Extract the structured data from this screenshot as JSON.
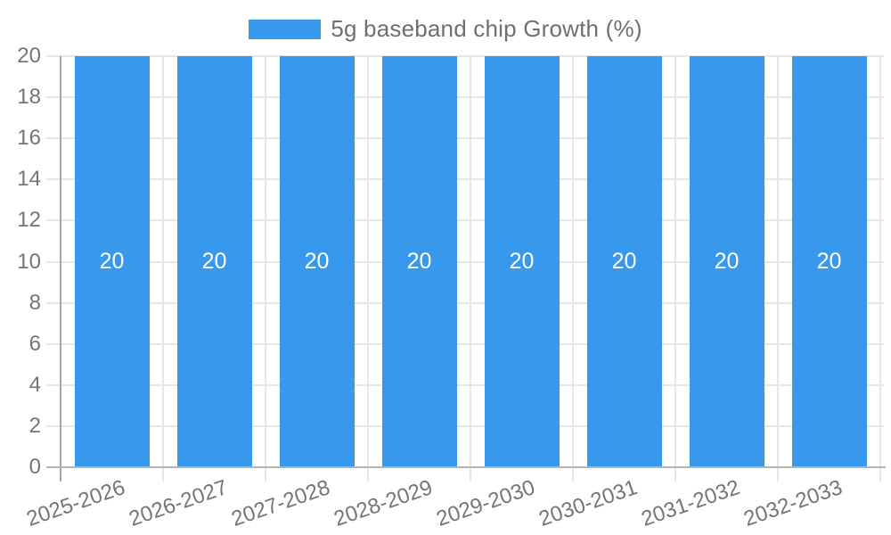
{
  "legend": {
    "label": "5g baseband chip Growth (%)"
  },
  "chart_data": {
    "type": "bar",
    "title": "",
    "categories": [
      "2025-2026",
      "2026-2027",
      "2027-2028",
      "2028-2029",
      "2029-2030",
      "2030-2031",
      "2031-2032",
      "2032-2033"
    ],
    "series": [
      {
        "name": "5g baseband chip Growth (%)",
        "values": [
          20,
          20,
          20,
          20,
          20,
          20,
          20,
          20
        ]
      }
    ],
    "data_labels": [
      "20",
      "20",
      "20",
      "20",
      "20",
      "20",
      "20",
      "20"
    ],
    "xlabel": "",
    "ylabel": "",
    "ylim": [
      0,
      20
    ],
    "ytick_step": 2,
    "yticks": [
      "0",
      "2",
      "4",
      "6",
      "8",
      "10",
      "12",
      "14",
      "16",
      "18",
      "20"
    ],
    "grid": "on",
    "legend_position": "top-center",
    "colors": {
      "bar": "#3898ec",
      "data_label": "#ffffff",
      "gridline": "#e7e7e7",
      "y_axis_line": "#a6a6a6",
      "x_axis_line": "#b3b3b3",
      "tick_text": "#757575",
      "legend_text": "#6f6f6f",
      "background": "#ffffff"
    }
  }
}
